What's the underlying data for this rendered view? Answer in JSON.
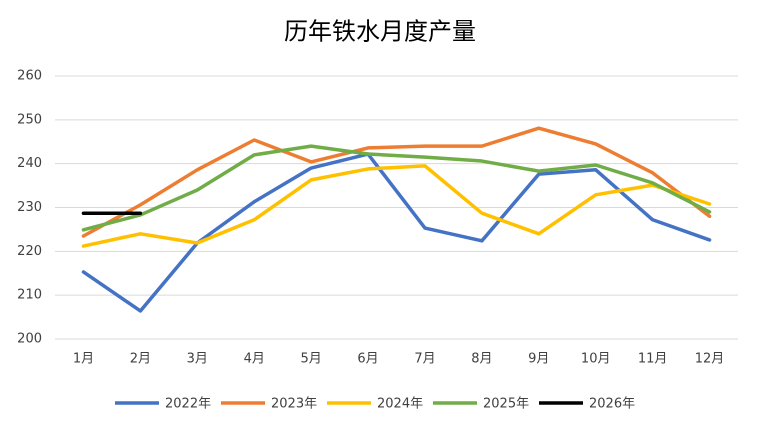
{
  "chart_data": {
    "type": "line",
    "title": "历年铁水月度产量",
    "categories": [
      "1月",
      "2月",
      "3月",
      "4月",
      "5月",
      "6月",
      "7月",
      "8月",
      "9月",
      "10月",
      "11月",
      "12月"
    ],
    "series": [
      {
        "name": "2022年",
        "color": "#4472c4",
        "values": [
          215.3,
          206.4,
          221.9,
          231.3,
          239.0,
          242.2,
          225.3,
          222.4,
          237.6,
          238.6,
          227.2,
          222.6
        ]
      },
      {
        "name": "2023年",
        "color": "#ed7d31",
        "values": [
          223.5,
          230.6,
          238.6,
          245.4,
          240.4,
          243.6,
          244.0,
          244.0,
          248.1,
          244.5,
          237.9,
          228.0
        ]
      },
      {
        "name": "2024年",
        "color": "#ffc000",
        "values": [
          221.2,
          224.0,
          221.9,
          227.2,
          236.3,
          238.8,
          239.5,
          228.7,
          224.0,
          232.9,
          235.1,
          230.8
        ]
      },
      {
        "name": "2025年",
        "color": "#70ad47",
        "values": [
          224.9,
          228.3,
          234.0,
          242.0,
          244.0,
          242.2,
          241.5,
          240.6,
          238.3,
          239.7,
          235.6,
          229.0
        ]
      },
      {
        "name": "2026年",
        "color": "#000000",
        "values": [
          228.7,
          228.7,
          null,
          null,
          null,
          null,
          null,
          null,
          null,
          null,
          null,
          null
        ]
      }
    ],
    "ylim": [
      200,
      260
    ],
    "yticks": [
      200,
      210,
      220,
      230,
      240,
      250,
      260
    ],
    "grid": true
  }
}
